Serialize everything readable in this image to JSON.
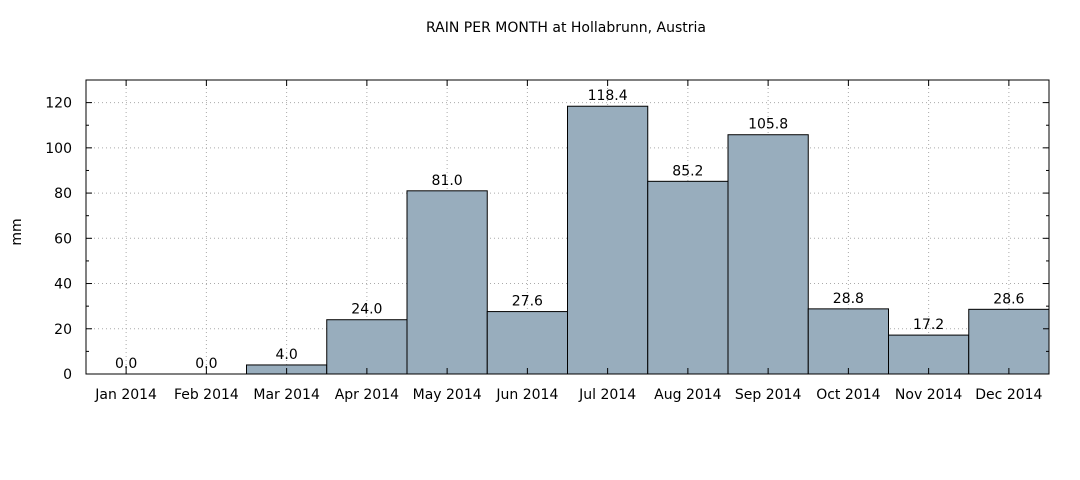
{
  "chart_data": {
    "type": "bar",
    "title": "RAIN PER MONTH at Hollabrunn, Austria",
    "ylabel": "mm",
    "xlabel": "",
    "categories": [
      "Jan 2014",
      "Feb 2014",
      "Mar 2014",
      "Apr 2014",
      "May 2014",
      "Jun 2014",
      "Jul 2014",
      "Aug 2014",
      "Sep 2014",
      "Oct 2014",
      "Nov 2014",
      "Dec 2014"
    ],
    "values": [
      0.0,
      0.0,
      4.0,
      24.0,
      81.0,
      27.6,
      118.4,
      85.2,
      105.8,
      28.8,
      17.2,
      28.6
    ],
    "value_labels": [
      "0.0",
      "0.0",
      "4.0",
      "24.0",
      "81.0",
      "27.6",
      "118.4",
      "85.2",
      "105.8",
      "28.8",
      "17.2",
      "28.6"
    ],
    "ylim": [
      0,
      130
    ],
    "yticks": [
      0,
      20,
      40,
      60,
      80,
      100,
      120
    ],
    "grid": true,
    "bar_color": "#98adbd",
    "grid_color": "#aaaaaa"
  }
}
